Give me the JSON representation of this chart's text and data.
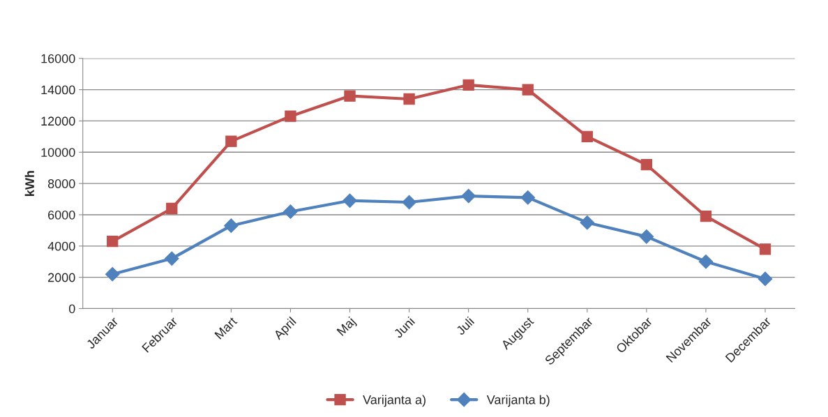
{
  "chart_data": {
    "type": "line",
    "ylabel": "kWh",
    "categories": [
      "Januar",
      "Februar",
      "Mart",
      "April",
      "Maj",
      "Juni",
      "Juli",
      "August",
      "Septembar",
      "Oktobar",
      "Novembar",
      "Decembar"
    ],
    "series": [
      {
        "name": "Varijanta a)",
        "color": "#c0504d",
        "marker": "square",
        "values": [
          4300,
          6400,
          10700,
          12300,
          13600,
          13400,
          14300,
          14000,
          11000,
          9200,
          5900,
          3800
        ]
      },
      {
        "name": "Varijanta b)",
        "color": "#4f81bd",
        "marker": "diamond",
        "values": [
          2200,
          3200,
          5300,
          6200,
          6900,
          6800,
          7200,
          7100,
          5500,
          4600,
          3000,
          1900
        ]
      }
    ],
    "ylim": [
      0,
      16000
    ],
    "yticks": [
      0,
      2000,
      4000,
      6000,
      8000,
      10000,
      12000,
      14000,
      16000
    ],
    "grid": "y",
    "legend": "bottom"
  }
}
